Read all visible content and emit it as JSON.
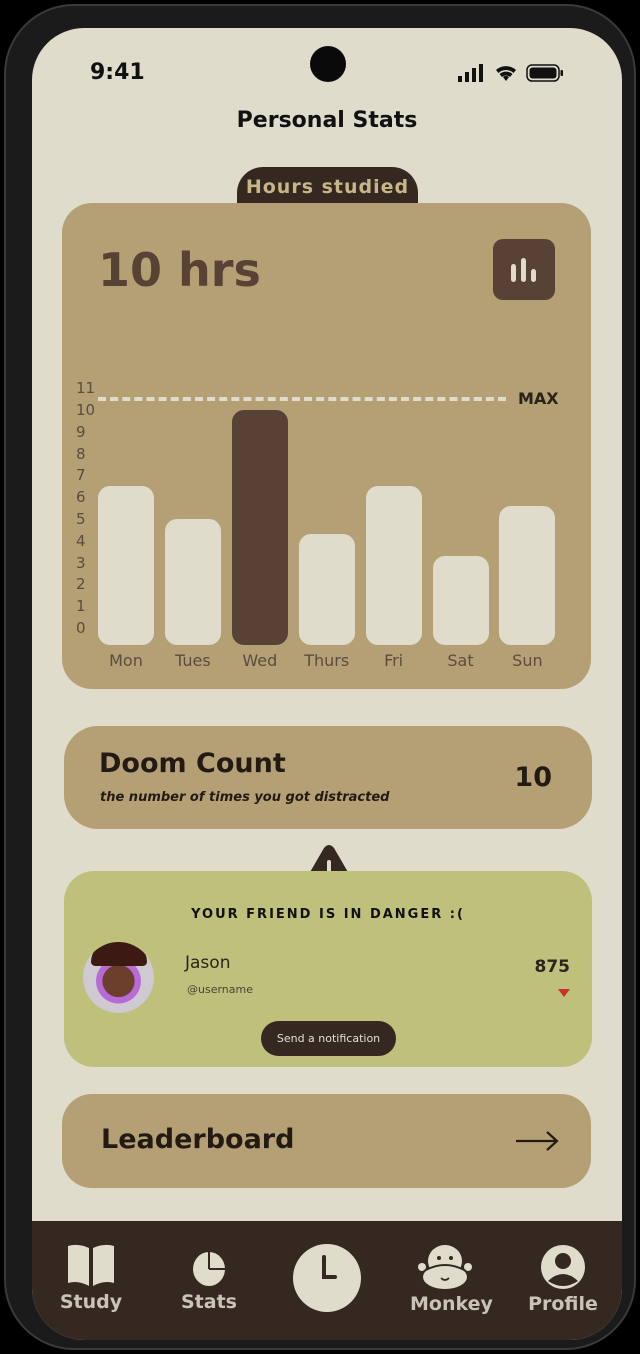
{
  "status_bar": {
    "time": "9:41"
  },
  "header": {
    "title": "Personal Stats"
  },
  "hours_card": {
    "tab_label": "Hours studied",
    "total": "10 hrs",
    "icon": "bar-chart-icon"
  },
  "chart_data": {
    "type": "bar",
    "categories": [
      "Mon",
      "Tues",
      "Wed",
      "Thurs",
      "Fri",
      "Sat",
      "Sun"
    ],
    "values": [
      6.5,
      5,
      10,
      4.3,
      6.5,
      3.3,
      5.6
    ],
    "highlight": "Wed",
    "yticks": [
      "0",
      "1",
      "2",
      "3",
      "4",
      "5",
      "6",
      "7",
      "8",
      "9",
      "10",
      "11"
    ],
    "ylim": [
      0,
      11
    ],
    "max_line": {
      "label": "MAX",
      "value": 10.5
    },
    "grid": false,
    "colors": {
      "bar": "#dfdccb",
      "highlight": "#574235",
      "max_line": "#dfdccb"
    }
  },
  "doom": {
    "title": "Doom Count",
    "subtitle": "the number of times you got distracted",
    "value": "10"
  },
  "danger": {
    "heading": "YOUR FRIEND IS IN DANGER :(",
    "name": "Jason",
    "username": "@username",
    "score": "875",
    "trend": "down",
    "button": "Send a notification"
  },
  "leaderboard": {
    "label": "Leaderboard"
  },
  "nav": {
    "items": [
      {
        "label": "Study",
        "icon": "book-icon"
      },
      {
        "label": "Stats",
        "icon": "pie-chart-icon"
      },
      {
        "label": "",
        "icon": "clock-icon"
      },
      {
        "label": "Monkey",
        "icon": "monkey-icon"
      },
      {
        "label": "Profile",
        "icon": "profile-icon"
      }
    ]
  },
  "colors": {
    "background": "#dfdccb",
    "card": "#b4a074",
    "dark": "#352821",
    "danger_card": "#bfc07c",
    "trend_down": "#c8302a"
  }
}
